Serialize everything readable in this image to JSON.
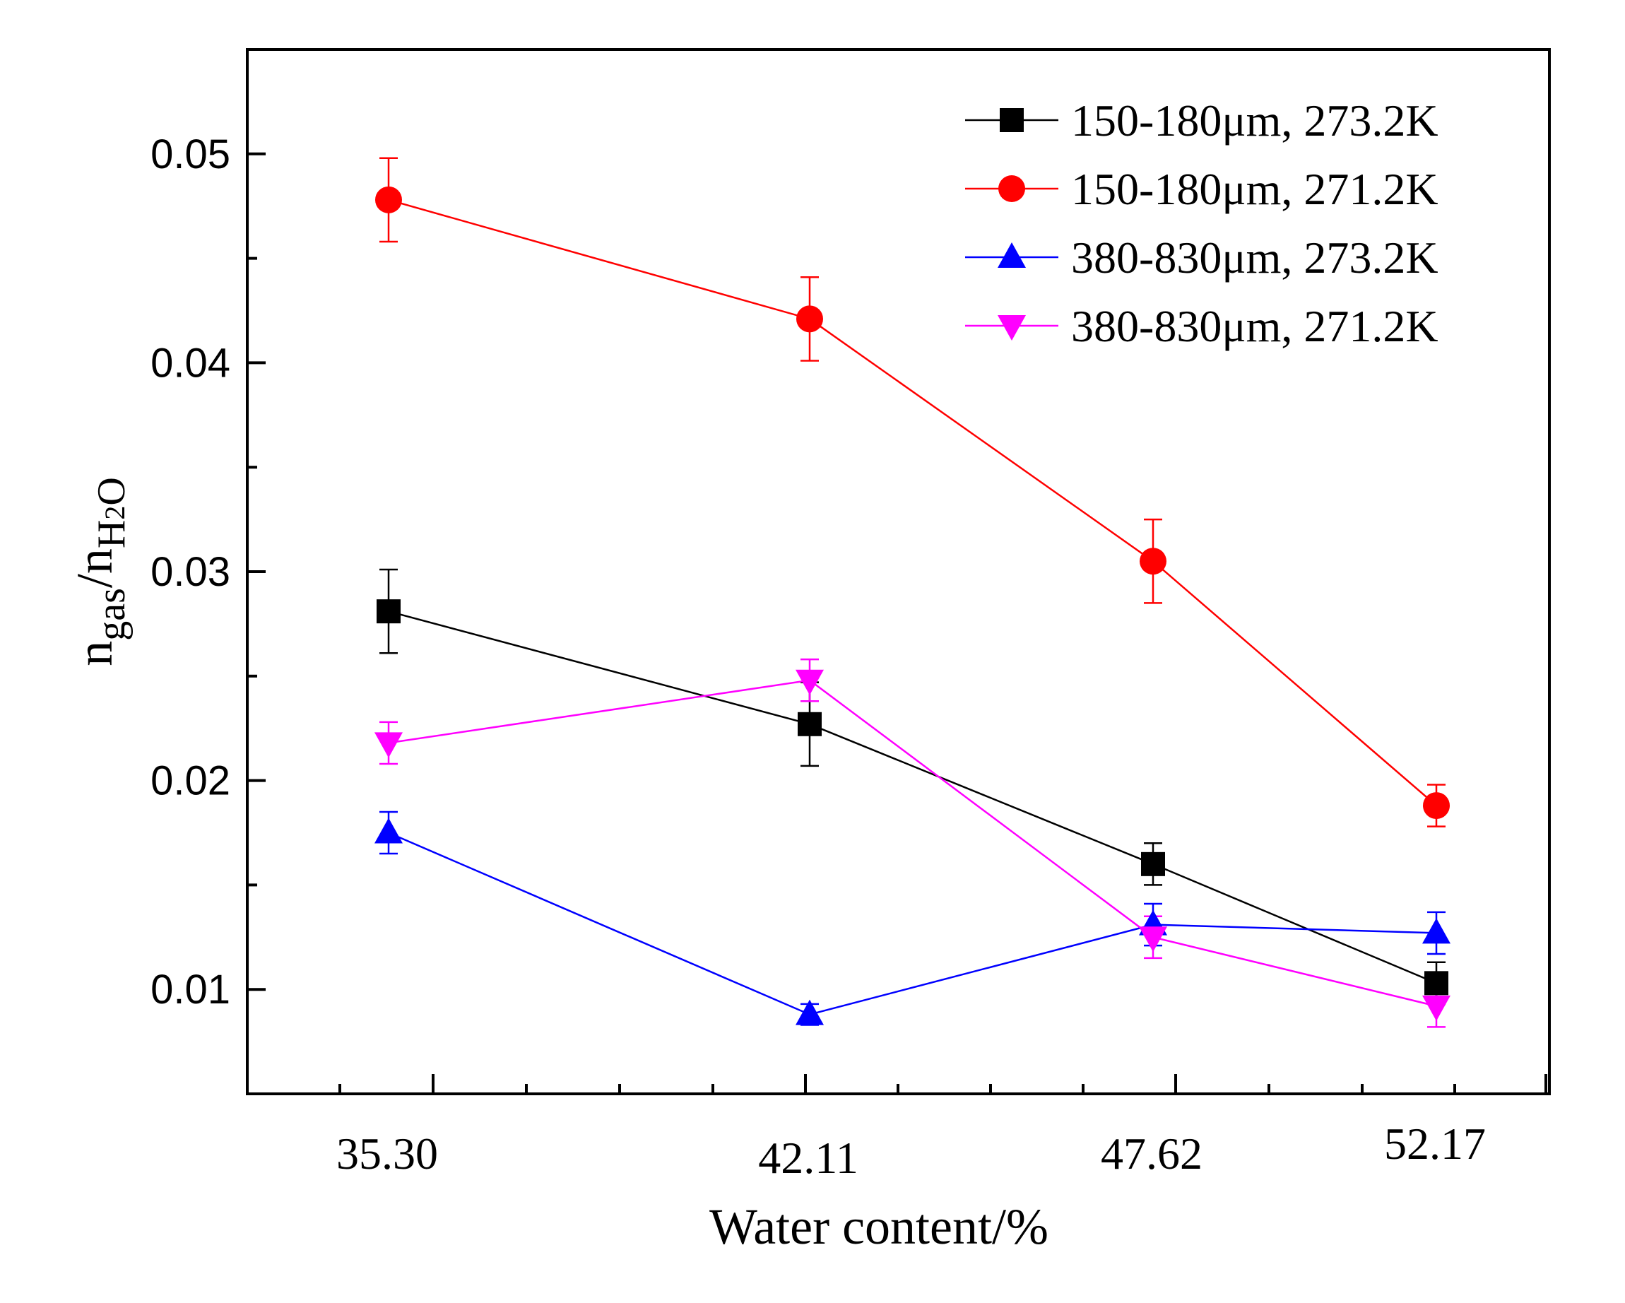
{
  "chart_data": {
    "type": "line",
    "xlabel": "Water content/%",
    "ylabel": {
      "main": "n",
      "sub1": "gas",
      "slash": "/n",
      "sub2": "H",
      "sub2_small": "2",
      "sub2_end": "O"
    },
    "categories": [
      "35.30",
      "42.11",
      "47.62",
      "52.17"
    ],
    "ylim": [
      0.005,
      0.055
    ],
    "yticks": [
      0.01,
      0.02,
      0.03,
      0.04,
      0.05
    ],
    "ytick_labels": [
      "0.01",
      "0.02",
      "0.03",
      "0.04",
      "0.05"
    ],
    "legend_position": "top-right",
    "series": [
      {
        "name": "150-180μm, 273.2K",
        "color": "#000000",
        "marker": "square",
        "values": [
          0.0281,
          0.0227,
          0.016,
          0.0103
        ],
        "errors": [
          0.002,
          0.002,
          0.001,
          0.001
        ]
      },
      {
        "name": "150-180μm, 271.2K",
        "color": "#ff0000",
        "marker": "circle",
        "values": [
          0.0478,
          0.0421,
          0.0305,
          0.0188
        ],
        "errors": [
          0.002,
          0.002,
          0.002,
          0.001
        ]
      },
      {
        "name": "380-830μm, 273.2K",
        "color": "#0000ff",
        "marker": "triangle-up",
        "values": [
          0.0175,
          0.0088,
          0.0131,
          0.0127
        ],
        "errors": [
          0.001,
          0.0005,
          0.001,
          0.001
        ]
      },
      {
        "name": "380-830μm, 271.2K",
        "color": "#ff00ff",
        "marker": "triangle-down",
        "values": [
          0.0218,
          0.0248,
          0.0125,
          0.0092
        ],
        "errors": [
          0.001,
          0.001,
          0.001,
          0.001
        ]
      }
    ]
  }
}
